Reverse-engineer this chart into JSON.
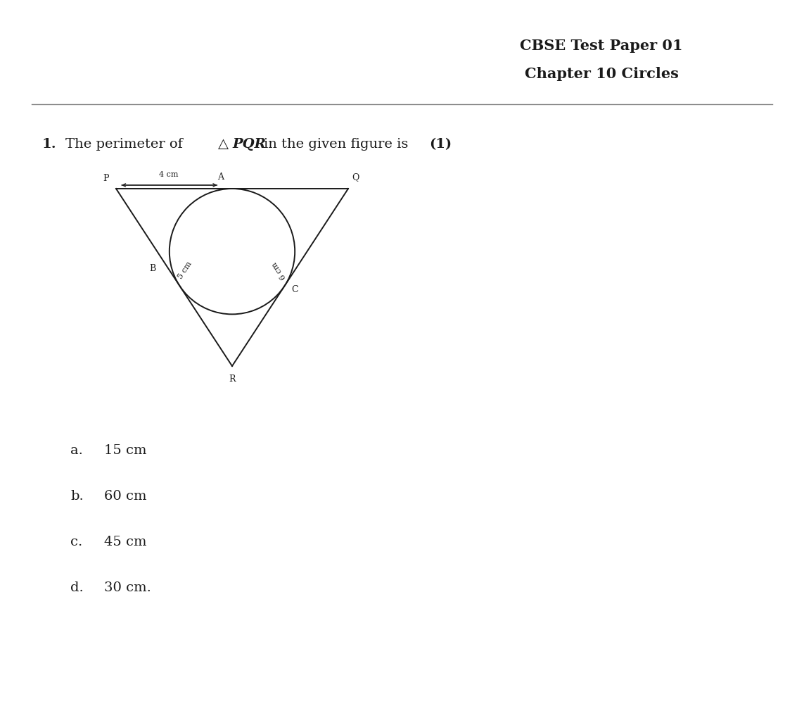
{
  "title_line1": "CBSE Test Paper 01",
  "title_line2": "Chapter 10 Circles",
  "options": [
    {
      "label": "a.",
      "text": "15 cm"
    },
    {
      "label": "b.",
      "text": "60 cm"
    },
    {
      "label": "c.",
      "text": "45 cm"
    },
    {
      "label": "d.",
      "text": "30 cm."
    }
  ],
  "PA_dist": "4 cm",
  "QC_dist": "6 cm",
  "BR_dist": "5 cm",
  "bg_color": "#ffffff",
  "text_color": "#1a1a1a",
  "line_color": "#1a1a1a",
  "title_fontsize": 15,
  "question_fontsize": 14,
  "option_fontsize": 14,
  "fig_label_fontsize": 9,
  "fig_dim_fontsize": 8
}
